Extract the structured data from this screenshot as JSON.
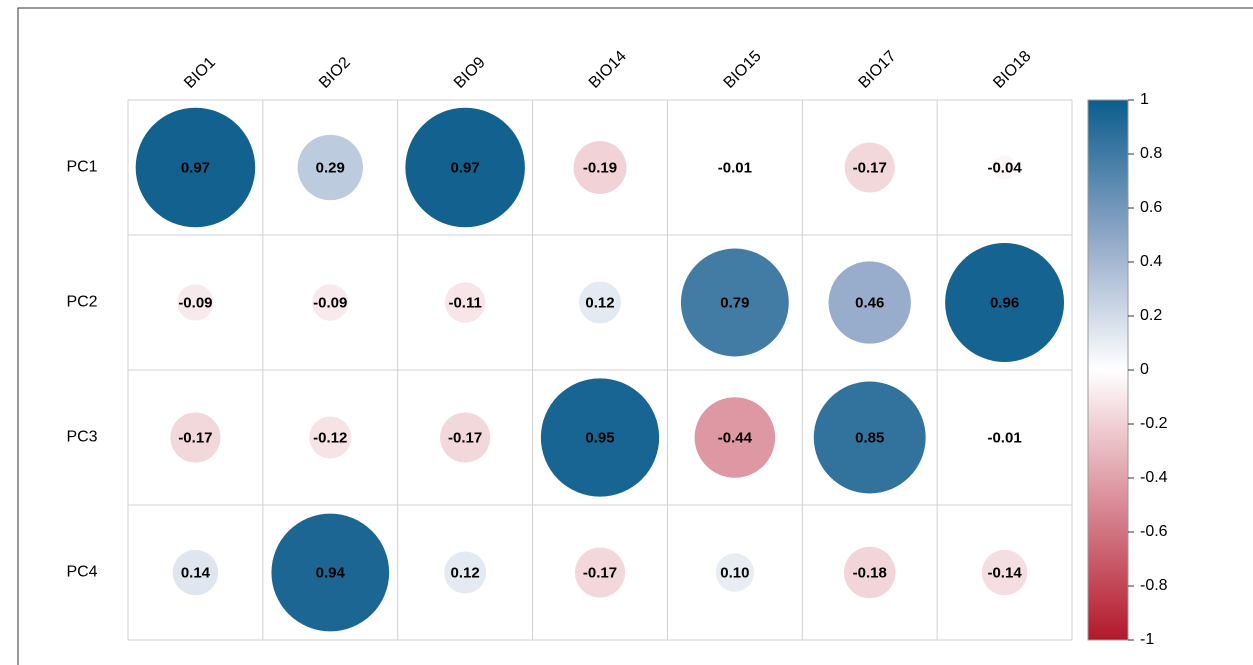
{
  "chart_data": {
    "type": "corrplot",
    "columns": [
      "BIO1",
      "BIO2",
      "BIO9",
      "BIO14",
      "BIO15",
      "BIO17",
      "BIO18"
    ],
    "rows": [
      "PC1",
      "PC2",
      "PC3",
      "PC4"
    ],
    "values": [
      [
        0.97,
        0.29,
        0.97,
        -0.19,
        -0.01,
        -0.17,
        -0.04
      ],
      [
        -0.09,
        -0.09,
        -0.11,
        0.12,
        0.79,
        0.46,
        0.96
      ],
      [
        -0.17,
        -0.12,
        -0.17,
        0.95,
        -0.44,
        0.85,
        -0.01
      ],
      [
        0.14,
        0.94,
        0.12,
        -0.17,
        0.1,
        -0.18,
        -0.14
      ]
    ],
    "value_labels": [
      [
        "0.97",
        "0.29",
        "0.97",
        "-0.19",
        "-0.01",
        "-0.17",
        "-0.04"
      ],
      [
        "-0.09",
        "-0.09",
        "-0.11",
        "0.12",
        "0.79",
        "0.46",
        "0.96"
      ],
      [
        "-0.17",
        "-0.12",
        "-0.17",
        "0.95",
        "-0.44",
        "0.85",
        "-0.01"
      ],
      [
        "0.14",
        "0.94",
        "0.12",
        "-0.17",
        "0.10",
        "-0.18",
        "-0.14"
      ]
    ],
    "colors": [
      "#b2182b",
      "#d98a96",
      "#ffffff",
      "#8ea6c6",
      "#0b5d8c"
    ],
    "ylim": [
      -1,
      1
    ],
    "yticks": [
      1,
      0.8,
      0.6,
      0.4,
      0.2,
      0,
      -0.2,
      -0.4,
      -0.6,
      -0.8,
      -1
    ]
  }
}
